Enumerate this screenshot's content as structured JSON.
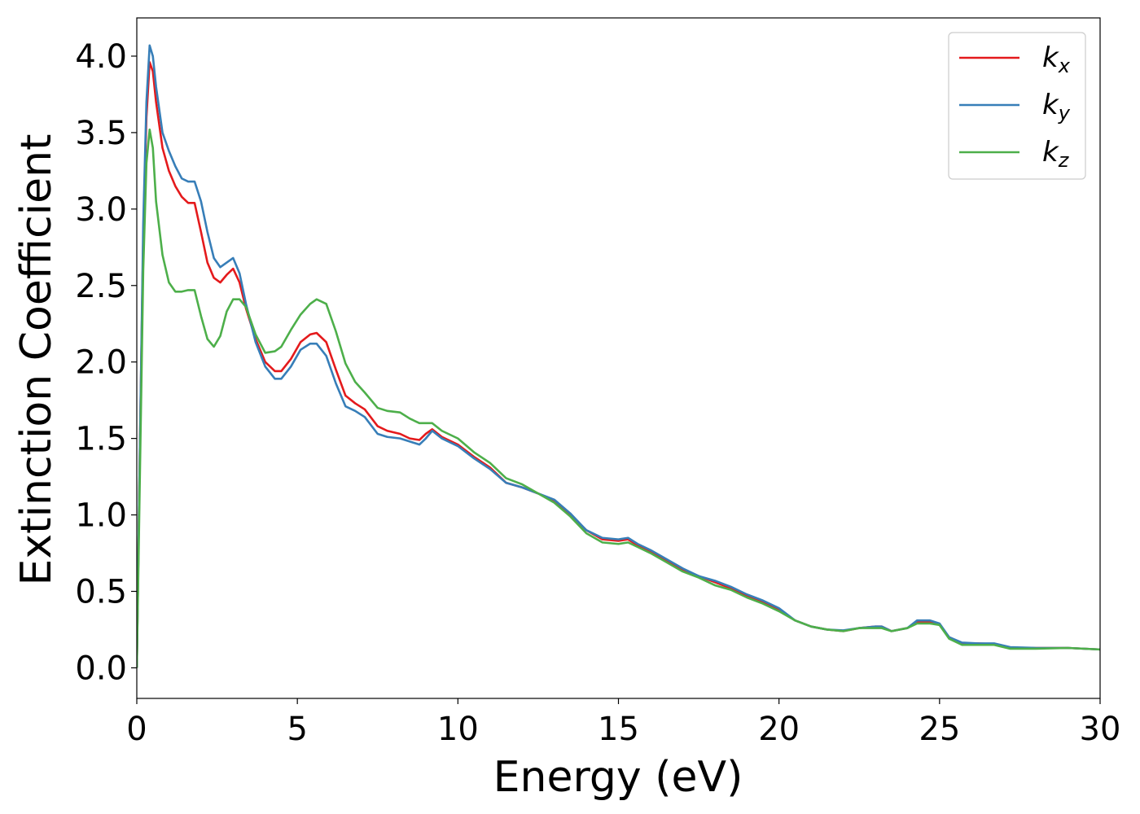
{
  "chart_data": {
    "type": "line",
    "title": "",
    "xlabel": "Energy (eV)",
    "ylabel": "Extinction Coefficient",
    "xlim": [
      0,
      30
    ],
    "ylim": [
      -0.2,
      4.25
    ],
    "xticks": [
      "0",
      "5",
      "10",
      "15",
      "20",
      "25",
      "30"
    ],
    "xtick_values": [
      0,
      5,
      10,
      15,
      20,
      25,
      30
    ],
    "yticks": [
      "0.0",
      "0.5",
      "1.0",
      "1.5",
      "2.0",
      "2.5",
      "3.0",
      "3.5",
      "4.0"
    ],
    "ytick_values": [
      0.0,
      0.5,
      1.0,
      1.5,
      2.0,
      2.5,
      3.0,
      3.5,
      4.0
    ],
    "grid": false,
    "legend_position": "top-right",
    "series": [
      {
        "name": "k",
        "subscript": "x",
        "color": "#e41a1c",
        "points": [
          [
            0,
            0
          ],
          [
            0.1,
            1.5
          ],
          [
            0.2,
            2.8
          ],
          [
            0.3,
            3.6
          ],
          [
            0.4,
            3.96
          ],
          [
            0.5,
            3.9
          ],
          [
            0.6,
            3.7
          ],
          [
            0.8,
            3.4
          ],
          [
            1.0,
            3.25
          ],
          [
            1.2,
            3.15
          ],
          [
            1.4,
            3.08
          ],
          [
            1.6,
            3.04
          ],
          [
            1.8,
            3.04
          ],
          [
            2.0,
            2.85
          ],
          [
            2.2,
            2.65
          ],
          [
            2.4,
            2.55
          ],
          [
            2.6,
            2.52
          ],
          [
            2.8,
            2.57
          ],
          [
            3.0,
            2.61
          ],
          [
            3.2,
            2.52
          ],
          [
            3.4,
            2.35
          ],
          [
            3.7,
            2.15
          ],
          [
            4.0,
            2.0
          ],
          [
            4.3,
            1.94
          ],
          [
            4.5,
            1.94
          ],
          [
            4.8,
            2.02
          ],
          [
            5.1,
            2.13
          ],
          [
            5.4,
            2.18
          ],
          [
            5.6,
            2.19
          ],
          [
            5.9,
            2.13
          ],
          [
            6.2,
            1.95
          ],
          [
            6.5,
            1.78
          ],
          [
            6.8,
            1.73
          ],
          [
            7.1,
            1.69
          ],
          [
            7.5,
            1.58
          ],
          [
            7.8,
            1.55
          ],
          [
            8.2,
            1.53
          ],
          [
            8.5,
            1.5
          ],
          [
            8.8,
            1.49
          ],
          [
            9.0,
            1.53
          ],
          [
            9.2,
            1.56
          ],
          [
            9.5,
            1.51
          ],
          [
            10.0,
            1.46
          ],
          [
            10.5,
            1.38
          ],
          [
            11.0,
            1.31
          ],
          [
            11.5,
            1.21
          ],
          [
            12.0,
            1.18
          ],
          [
            12.5,
            1.14
          ],
          [
            13.0,
            1.09
          ],
          [
            13.5,
            1.0
          ],
          [
            14.0,
            0.9
          ],
          [
            14.5,
            0.84
          ],
          [
            15.0,
            0.83
          ],
          [
            15.3,
            0.84
          ],
          [
            15.6,
            0.8
          ],
          [
            16.0,
            0.76
          ],
          [
            16.5,
            0.7
          ],
          [
            17.0,
            0.64
          ],
          [
            17.5,
            0.6
          ],
          [
            18.0,
            0.56
          ],
          [
            18.5,
            0.52
          ],
          [
            19.0,
            0.47
          ],
          [
            19.5,
            0.43
          ],
          [
            20.0,
            0.38
          ],
          [
            20.5,
            0.31
          ],
          [
            21.0,
            0.27
          ],
          [
            21.5,
            0.25
          ],
          [
            22.0,
            0.24
          ],
          [
            22.5,
            0.26
          ],
          [
            23.0,
            0.27
          ],
          [
            23.2,
            0.27
          ],
          [
            23.5,
            0.24
          ],
          [
            24.0,
            0.26
          ],
          [
            24.3,
            0.3
          ],
          [
            24.7,
            0.3
          ],
          [
            25.0,
            0.28
          ],
          [
            25.3,
            0.2
          ],
          [
            25.7,
            0.16
          ],
          [
            26.2,
            0.16
          ],
          [
            26.7,
            0.155
          ],
          [
            27.2,
            0.13
          ],
          [
            28.0,
            0.13
          ],
          [
            29.0,
            0.13
          ],
          [
            30.0,
            0.12
          ]
        ]
      },
      {
        "name": "k",
        "subscript": "y",
        "color": "#377eb8",
        "points": [
          [
            0,
            0
          ],
          [
            0.1,
            1.5
          ],
          [
            0.2,
            2.9
          ],
          [
            0.3,
            3.7
          ],
          [
            0.4,
            4.07
          ],
          [
            0.5,
            4.0
          ],
          [
            0.6,
            3.8
          ],
          [
            0.8,
            3.5
          ],
          [
            1.0,
            3.38
          ],
          [
            1.2,
            3.28
          ],
          [
            1.4,
            3.2
          ],
          [
            1.6,
            3.18
          ],
          [
            1.8,
            3.18
          ],
          [
            2.0,
            3.05
          ],
          [
            2.2,
            2.85
          ],
          [
            2.4,
            2.68
          ],
          [
            2.6,
            2.62
          ],
          [
            2.8,
            2.65
          ],
          [
            3.0,
            2.68
          ],
          [
            3.2,
            2.58
          ],
          [
            3.4,
            2.38
          ],
          [
            3.7,
            2.13
          ],
          [
            4.0,
            1.97
          ],
          [
            4.3,
            1.89
          ],
          [
            4.5,
            1.89
          ],
          [
            4.8,
            1.97
          ],
          [
            5.1,
            2.08
          ],
          [
            5.4,
            2.12
          ],
          [
            5.6,
            2.12
          ],
          [
            5.9,
            2.04
          ],
          [
            6.2,
            1.86
          ],
          [
            6.5,
            1.71
          ],
          [
            6.8,
            1.68
          ],
          [
            7.1,
            1.64
          ],
          [
            7.5,
            1.53
          ],
          [
            7.8,
            1.51
          ],
          [
            8.2,
            1.5
          ],
          [
            8.5,
            1.48
          ],
          [
            8.8,
            1.46
          ],
          [
            9.0,
            1.5
          ],
          [
            9.2,
            1.55
          ],
          [
            9.5,
            1.5
          ],
          [
            10.0,
            1.45
          ],
          [
            10.5,
            1.37
          ],
          [
            11.0,
            1.3
          ],
          [
            11.5,
            1.21
          ],
          [
            12.0,
            1.18
          ],
          [
            12.5,
            1.14
          ],
          [
            13.0,
            1.1
          ],
          [
            13.5,
            1.01
          ],
          [
            14.0,
            0.9
          ],
          [
            14.5,
            0.85
          ],
          [
            15.0,
            0.84
          ],
          [
            15.3,
            0.85
          ],
          [
            15.6,
            0.81
          ],
          [
            16.0,
            0.77
          ],
          [
            16.5,
            0.71
          ],
          [
            17.0,
            0.65
          ],
          [
            17.5,
            0.6
          ],
          [
            18.0,
            0.57
          ],
          [
            18.5,
            0.53
          ],
          [
            19.0,
            0.48
          ],
          [
            19.5,
            0.44
          ],
          [
            20.0,
            0.39
          ],
          [
            20.5,
            0.31
          ],
          [
            21.0,
            0.27
          ],
          [
            21.5,
            0.25
          ],
          [
            22.0,
            0.245
          ],
          [
            22.5,
            0.26
          ],
          [
            23.0,
            0.27
          ],
          [
            23.2,
            0.27
          ],
          [
            23.5,
            0.24
          ],
          [
            24.0,
            0.26
          ],
          [
            24.3,
            0.31
          ],
          [
            24.7,
            0.31
          ],
          [
            25.0,
            0.29
          ],
          [
            25.3,
            0.2
          ],
          [
            25.7,
            0.165
          ],
          [
            26.2,
            0.16
          ],
          [
            26.7,
            0.16
          ],
          [
            27.2,
            0.135
          ],
          [
            28.0,
            0.13
          ],
          [
            29.0,
            0.13
          ],
          [
            30.0,
            0.12
          ]
        ]
      },
      {
        "name": "k",
        "subscript": "z",
        "color": "#4daf4a",
        "points": [
          [
            0,
            0
          ],
          [
            0.1,
            1.3
          ],
          [
            0.2,
            2.6
          ],
          [
            0.3,
            3.3
          ],
          [
            0.4,
            3.52
          ],
          [
            0.5,
            3.4
          ],
          [
            0.6,
            3.05
          ],
          [
            0.8,
            2.7
          ],
          [
            1.0,
            2.52
          ],
          [
            1.2,
            2.46
          ],
          [
            1.4,
            2.46
          ],
          [
            1.6,
            2.47
          ],
          [
            1.8,
            2.47
          ],
          [
            2.0,
            2.3
          ],
          [
            2.2,
            2.15
          ],
          [
            2.4,
            2.1
          ],
          [
            2.6,
            2.17
          ],
          [
            2.8,
            2.33
          ],
          [
            3.0,
            2.41
          ],
          [
            3.2,
            2.41
          ],
          [
            3.4,
            2.36
          ],
          [
            3.7,
            2.18
          ],
          [
            4.0,
            2.06
          ],
          [
            4.3,
            2.07
          ],
          [
            4.5,
            2.1
          ],
          [
            4.8,
            2.21
          ],
          [
            5.1,
            2.31
          ],
          [
            5.4,
            2.38
          ],
          [
            5.6,
            2.41
          ],
          [
            5.9,
            2.38
          ],
          [
            6.2,
            2.2
          ],
          [
            6.5,
            1.99
          ],
          [
            6.8,
            1.87
          ],
          [
            7.1,
            1.8
          ],
          [
            7.5,
            1.7
          ],
          [
            7.8,
            1.68
          ],
          [
            8.2,
            1.67
          ],
          [
            8.5,
            1.63
          ],
          [
            8.8,
            1.6
          ],
          [
            9.0,
            1.6
          ],
          [
            9.2,
            1.6
          ],
          [
            9.5,
            1.55
          ],
          [
            10.0,
            1.5
          ],
          [
            10.5,
            1.41
          ],
          [
            11.0,
            1.34
          ],
          [
            11.5,
            1.24
          ],
          [
            12.0,
            1.2
          ],
          [
            12.5,
            1.14
          ],
          [
            13.0,
            1.08
          ],
          [
            13.5,
            0.99
          ],
          [
            14.0,
            0.88
          ],
          [
            14.5,
            0.82
          ],
          [
            15.0,
            0.81
          ],
          [
            15.3,
            0.82
          ],
          [
            15.6,
            0.79
          ],
          [
            16.0,
            0.75
          ],
          [
            16.5,
            0.69
          ],
          [
            17.0,
            0.63
          ],
          [
            17.5,
            0.59
          ],
          [
            18.0,
            0.54
          ],
          [
            18.5,
            0.51
          ],
          [
            19.0,
            0.46
          ],
          [
            19.5,
            0.42
          ],
          [
            20.0,
            0.37
          ],
          [
            20.5,
            0.31
          ],
          [
            21.0,
            0.27
          ],
          [
            21.5,
            0.25
          ],
          [
            22.0,
            0.24
          ],
          [
            22.5,
            0.26
          ],
          [
            23.0,
            0.26
          ],
          [
            23.2,
            0.26
          ],
          [
            23.5,
            0.24
          ],
          [
            24.0,
            0.26
          ],
          [
            24.3,
            0.29
          ],
          [
            24.7,
            0.29
          ],
          [
            25.0,
            0.28
          ],
          [
            25.3,
            0.19
          ],
          [
            25.7,
            0.15
          ],
          [
            26.2,
            0.15
          ],
          [
            26.7,
            0.15
          ],
          [
            27.2,
            0.125
          ],
          [
            28.0,
            0.125
          ],
          [
            29.0,
            0.13
          ],
          [
            30.0,
            0.12
          ]
        ]
      }
    ]
  }
}
